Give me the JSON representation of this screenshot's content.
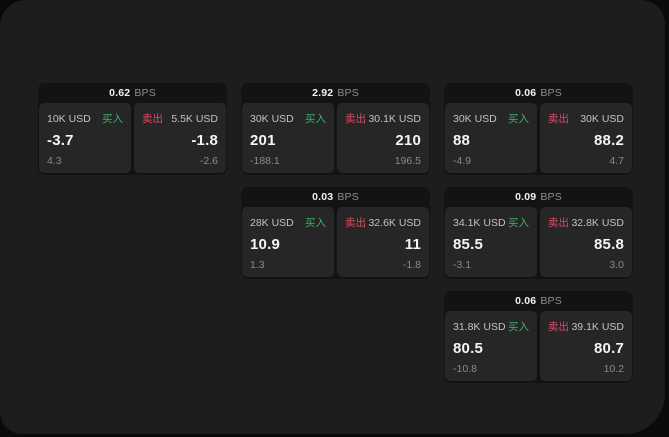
{
  "labels": {
    "bps_unit": "BPS",
    "buy": "买入",
    "sell": "卖出"
  },
  "colors": {
    "page_bg": "#0a0a0a",
    "window_bg": "#1d1d1d",
    "card_bg": "#131313",
    "panel_bg": "#262626",
    "buy_green": "#3eb06a",
    "sell_red": "#dd4a63"
  },
  "cards": [
    {
      "bps": "0.62",
      "buy": {
        "amount": "10K USD",
        "price": "-3.7",
        "delta": "4.3"
      },
      "sell": {
        "amount": "5.5K USD",
        "price": "-1.8",
        "delta": "-2.6"
      }
    },
    {
      "bps": "2.92",
      "buy": {
        "amount": "30K USD",
        "price": "201",
        "delta": "-188.1"
      },
      "sell": {
        "amount": "30.1K USD",
        "price": "210",
        "delta": "196.5"
      }
    },
    {
      "bps": "0.06",
      "buy": {
        "amount": "30K USD",
        "price": "88",
        "delta": "-4.9"
      },
      "sell": {
        "amount": "30K USD",
        "price": "88.2",
        "delta": "4.7"
      }
    },
    {
      "bps": "0.03",
      "buy": {
        "amount": "28K USD",
        "price": "10.9",
        "delta": "1.3"
      },
      "sell": {
        "amount": "32.6K USD",
        "price": "11",
        "delta": "-1.8"
      }
    },
    {
      "bps": "0.09",
      "buy": {
        "amount": "34.1K USD",
        "price": "85.5",
        "delta": "-3.1"
      },
      "sell": {
        "amount": "32.8K USD",
        "price": "85.8",
        "delta": "3.0"
      }
    },
    {
      "bps": "0.06",
      "buy": {
        "amount": "31.8K USD",
        "price": "80.5",
        "delta": "-10.8"
      },
      "sell": {
        "amount": "39.1K USD",
        "price": "80.7",
        "delta": "10.2"
      }
    }
  ]
}
